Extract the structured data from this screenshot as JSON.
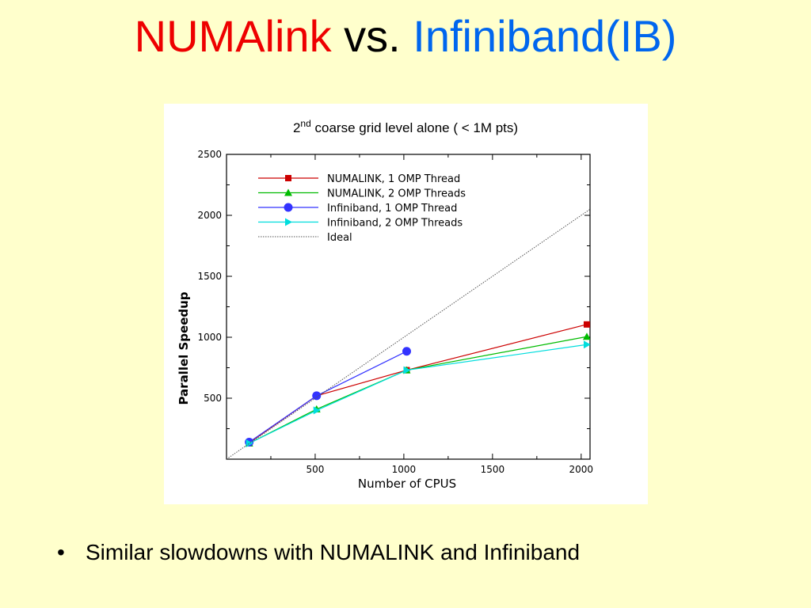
{
  "slide": {
    "title_part1": "NUMAlink",
    "title_part2": " vs. ",
    "title_part3": "Infiniband(IB)",
    "colors": {
      "part1": "#ee0000",
      "part2": "#000000",
      "part3": "#0066ee"
    },
    "bullet_symbol": "•",
    "bullet_text": "Similar slowdowns with NUMALINK and Infiniband"
  },
  "chart_data": {
    "type": "line",
    "title_base": "2",
    "title_sup": "nd",
    "title_rest": " coarse grid level alone ( < 1M pts)",
    "xlabel": "Number of CPUS",
    "ylabel": "Parallel Speedup",
    "xlim": [
      0,
      2050
    ],
    "ylim": [
      0,
      2500
    ],
    "xticks": [
      500,
      1000,
      1500,
      2000
    ],
    "yticks": [
      500,
      1000,
      1500,
      2000,
      2500
    ],
    "grid": false,
    "legend_position": "top-left",
    "series": [
      {
        "name": "NUMALINK, 1 OMP Thread",
        "color": "#cc0000",
        "marker": "square",
        "x": [
          128,
          508,
          1016,
          2032
        ],
        "y": [
          135,
          520,
          730,
          1105
        ]
      },
      {
        "name": "NUMALINK, 2 OMP Threads",
        "color": "#00bb00",
        "marker": "triangle-up",
        "x": [
          128,
          508,
          1016,
          2032
        ],
        "y": [
          130,
          410,
          730,
          1005
        ]
      },
      {
        "name": "Infiniband, 1 OMP Thread",
        "color": "#3333ff",
        "marker": "circle",
        "x": [
          128,
          508,
          1016
        ],
        "y": [
          140,
          520,
          885
        ]
      },
      {
        "name": "Infiniband, 2 OMP Threads",
        "color": "#00dddd",
        "marker": "triangle-right",
        "x": [
          128,
          508,
          1016,
          2032
        ],
        "y": [
          130,
          400,
          730,
          940
        ]
      },
      {
        "name": "Ideal",
        "color": "#555555",
        "marker": "none",
        "dash": true,
        "x": [
          0,
          2050
        ],
        "y": [
          0,
          2050
        ]
      }
    ]
  }
}
